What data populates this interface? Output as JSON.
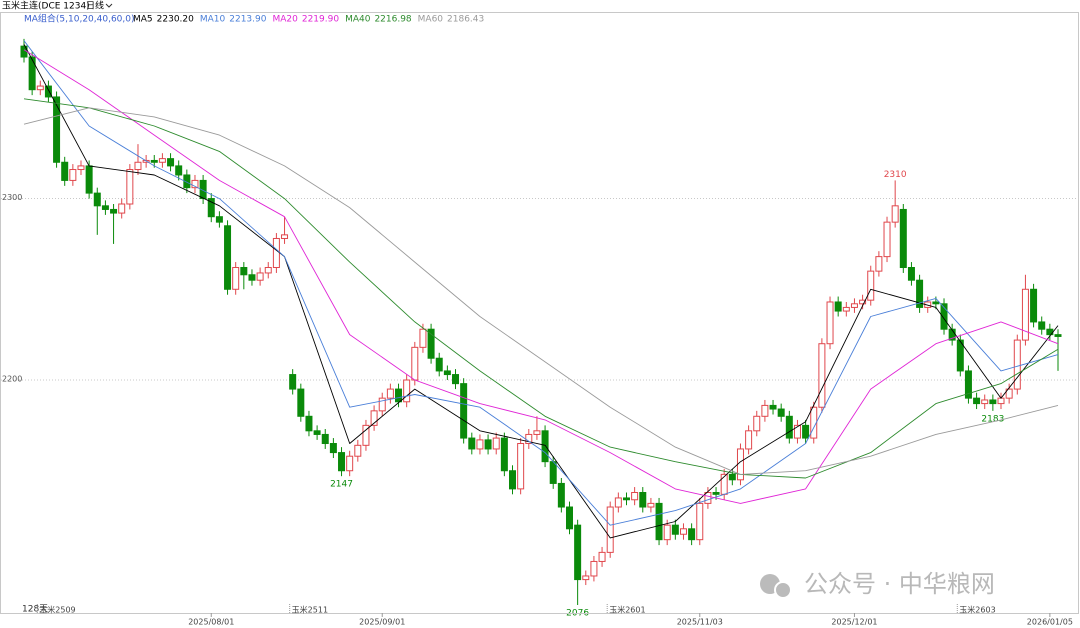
{
  "chart_data": {
    "type": "candlestick",
    "title": "玉米主连(DCE 1234)",
    "period": "日线",
    "ma_group_label": "MA组合(5,10,20,40,60,0)",
    "bar_count_label": "128天",
    "watermark": "公众号 · 中华粮网",
    "up_color": "#e0474c",
    "down_color": "#0a8a0a",
    "open": [
      2384,
      2378,
      2360,
      2362,
      2356,
      2320,
      2310,
      2316,
      2318,
      2303,
      2296,
      2294,
      2292,
      2297,
      2316,
      2320,
      2321,
      2320,
      2322,
      2318,
      2313,
      2306,
      2310,
      2300,
      2290,
      2285,
      2250,
      2262,
      2258,
      2255,
      2259,
      2262,
      2278,
      2203,
      2195,
      2180,
      2172,
      2170,
      2165,
      2160,
      2150,
      2158,
      2164,
      2175,
      2183,
      2190,
      2195,
      2188,
      2200,
      2218,
      2228,
      2212,
      2205,
      2203,
      2198,
      2168,
      2162,
      2167,
      2162,
      2168,
      2150,
      2140,
      2165,
      2170,
      2172,
      2155,
      2143,
      2130,
      2120,
      2090,
      2092,
      2100,
      2105,
      2130,
      2135,
      2134,
      2138,
      2130,
      2132,
      2112,
      2120,
      2115,
      2118,
      2112,
      2132,
      2138,
      2137,
      2148,
      2145,
      2162,
      2172,
      2180,
      2186,
      2184,
      2180,
      2168,
      2175,
      2168,
      2185,
      2220,
      2243,
      2238,
      2240,
      2242,
      2244,
      2260,
      2268,
      2287,
      2294,
      2262,
      2255,
      2240,
      2243,
      2242,
      2228,
      2222,
      2205,
      2190,
      2187,
      2189,
      2187,
      2190,
      2195,
      2222,
      2250,
      2232,
      2228,
      2225
    ],
    "high": [
      2388,
      2381,
      2365,
      2365,
      2359,
      2323,
      2319,
      2321,
      2321,
      2306,
      2299,
      2297,
      2300,
      2319,
      2330,
      2324,
      2324,
      2325,
      2325,
      2321,
      2316,
      2313,
      2313,
      2303,
      2293,
      2288,
      2265,
      2265,
      2261,
      2262,
      2265,
      2281,
      2290,
      2206,
      2198,
      2183,
      2175,
      2173,
      2168,
      2163,
      2161,
      2167,
      2178,
      2186,
      2193,
      2198,
      2198,
      2203,
      2221,
      2231,
      2231,
      2215,
      2208,
      2206,
      2201,
      2171,
      2170,
      2170,
      2171,
      2171,
      2153,
      2168,
      2173,
      2180,
      2175,
      2158,
      2146,
      2133,
      2123,
      2095,
      2103,
      2108,
      2133,
      2138,
      2138,
      2141,
      2141,
      2135,
      2135,
      2123,
      2123,
      2121,
      2121,
      2135,
      2141,
      2141,
      2151,
      2151,
      2165,
      2175,
      2183,
      2189,
      2189,
      2187,
      2183,
      2178,
      2178,
      2188,
      2223,
      2246,
      2246,
      2243,
      2245,
      2247,
      2263,
      2271,
      2290,
      2310,
      2297,
      2265,
      2258,
      2246,
      2246,
      2245,
      2231,
      2225,
      2208,
      2193,
      2192,
      2192,
      2193,
      2198,
      2225,
      2258,
      2253,
      2235,
      2231,
      2228
    ],
    "low": [
      2375,
      2357,
      2357,
      2353,
      2317,
      2307,
      2307,
      2313,
      2300,
      2280,
      2291,
      2275,
      2289,
      2294,
      2313,
      2317,
      2317,
      2317,
      2315,
      2310,
      2303,
      2303,
      2297,
      2287,
      2284,
      2247,
      2247,
      2250,
      2252,
      2252,
      2256,
      2259,
      2275,
      2192,
      2177,
      2169,
      2167,
      2162,
      2157,
      2147,
      2147,
      2155,
      2161,
      2172,
      2180,
      2187,
      2185,
      2185,
      2197,
      2215,
      2209,
      2202,
      2200,
      2195,
      2165,
      2159,
      2159,
      2159,
      2159,
      2147,
      2137,
      2137,
      2162,
      2167,
      2152,
      2140,
      2127,
      2115,
      2076,
      2087,
      2089,
      2097,
      2102,
      2127,
      2131,
      2131,
      2127,
      2127,
      2109,
      2109,
      2112,
      2112,
      2109,
      2109,
      2129,
      2134,
      2134,
      2142,
      2142,
      2159,
      2169,
      2177,
      2181,
      2177,
      2165,
      2165,
      2165,
      2165,
      2182,
      2217,
      2235,
      2235,
      2237,
      2239,
      2241,
      2257,
      2265,
      2284,
      2259,
      2252,
      2237,
      2237,
      2239,
      2225,
      2219,
      2202,
      2187,
      2184,
      2184,
      2183,
      2184,
      2187,
      2192,
      2219,
      2229,
      2225,
      2222,
      2205
    ],
    "close": [
      2378,
      2360,
      2362,
      2356,
      2320,
      2310,
      2316,
      2318,
      2303,
      2296,
      2294,
      2292,
      2297,
      2316,
      2320,
      2321,
      2320,
      2322,
      2318,
      2313,
      2306,
      2310,
      2300,
      2290,
      2287,
      2250,
      2262,
      2258,
      2255,
      2259,
      2262,
      2278,
      2280,
      2195,
      2180,
      2172,
      2170,
      2165,
      2160,
      2150,
      2158,
      2164,
      2175,
      2183,
      2190,
      2195,
      2188,
      2200,
      2218,
      2228,
      2212,
      2205,
      2203,
      2198,
      2168,
      2162,
      2167,
      2162,
      2168,
      2150,
      2140,
      2165,
      2170,
      2172,
      2155,
      2143,
      2130,
      2118,
      2090,
      2092,
      2100,
      2105,
      2130,
      2135,
      2134,
      2138,
      2130,
      2132,
      2112,
      2120,
      2115,
      2118,
      2112,
      2132,
      2138,
      2137,
      2148,
      2145,
      2162,
      2172,
      2180,
      2186,
      2184,
      2180,
      2168,
      2175,
      2168,
      2185,
      2220,
      2243,
      2238,
      2240,
      2242,
      2244,
      2260,
      2268,
      2287,
      2296,
      2262,
      2255,
      2240,
      2243,
      2242,
      2228,
      2222,
      2205,
      2190,
      2187,
      2189,
      2187,
      2190,
      2195,
      2222,
      2250,
      2232,
      2228,
      2225,
      2224
    ],
    "ma_lines": {
      "x": [
        0,
        8,
        16,
        24,
        32,
        40,
        48,
        56,
        64,
        72,
        80,
        88,
        96,
        104,
        112,
        120,
        127
      ],
      "series": [
        {
          "name": "MA5",
          "color": "#000000",
          "legend_value": {
            "value": 2230.2,
            "label": "2230.20"
          },
          "values": [
            2385,
            2318,
            2313,
            2296,
            2268,
            2165,
            2195,
            2172,
            2164,
            2113,
            2122,
            2155,
            2177,
            2250,
            2240,
            2190,
            2230
          ]
        },
        {
          "name": "MA10",
          "color": "#4a7fd8",
          "legend_value": {
            "value": 2213.9,
            "label": "2213.90"
          },
          "values": [
            2387,
            2340,
            2318,
            2300,
            2268,
            2185,
            2192,
            2185,
            2160,
            2120,
            2128,
            2140,
            2165,
            2235,
            2245,
            2205,
            2214
          ]
        },
        {
          "name": "MA20",
          "color": "#e026d6",
          "legend_value": {
            "value": 2219.9,
            "label": "2219.90"
          },
          "values": [
            2382,
            2360,
            2335,
            2310,
            2290,
            2225,
            2200,
            2187,
            2178,
            2160,
            2140,
            2132,
            2140,
            2195,
            2220,
            2232,
            2220
          ]
        },
        {
          "name": "MA40",
          "color": "#2e8b2e",
          "legend_value": {
            "value": 2216.98,
            "label": "2216.98"
          },
          "values": [
            2355,
            2350,
            2340,
            2326,
            2300,
            2265,
            2232,
            2205,
            2180,
            2163,
            2155,
            2148,
            2146,
            2160,
            2187,
            2198,
            2217
          ]
        },
        {
          "name": "MA60",
          "color": "#9a9a9a",
          "legend_value": {
            "value": 2186.43,
            "label": "2186.43"
          },
          "values": [
            2341,
            2350,
            2345,
            2335,
            2318,
            2295,
            2265,
            2235,
            2210,
            2185,
            2163,
            2148,
            2150,
            2158,
            2170,
            2178,
            2186
          ]
        }
      ]
    },
    "ylim": [
      2076,
      2394
    ],
    "yticks": [
      2200,
      2300
    ],
    "grid": true,
    "xticks": [
      {
        "value": 23,
        "label": "2025/08/01"
      },
      {
        "value": 44,
        "label": "2025/09/01"
      },
      {
        "value": 83,
        "label": "2025/11/03"
      },
      {
        "value": 102,
        "label": "2025/12/01"
      },
      {
        "value": 126,
        "label": "2026/01/05"
      }
    ],
    "contract_marks": [
      {
        "index": 2,
        "label": "玉米2509"
      },
      {
        "index": 33,
        "label": "玉米2511"
      },
      {
        "index": 72,
        "label": "玉米2601"
      },
      {
        "index": 115,
        "label": "玉米2603"
      }
    ]
  }
}
